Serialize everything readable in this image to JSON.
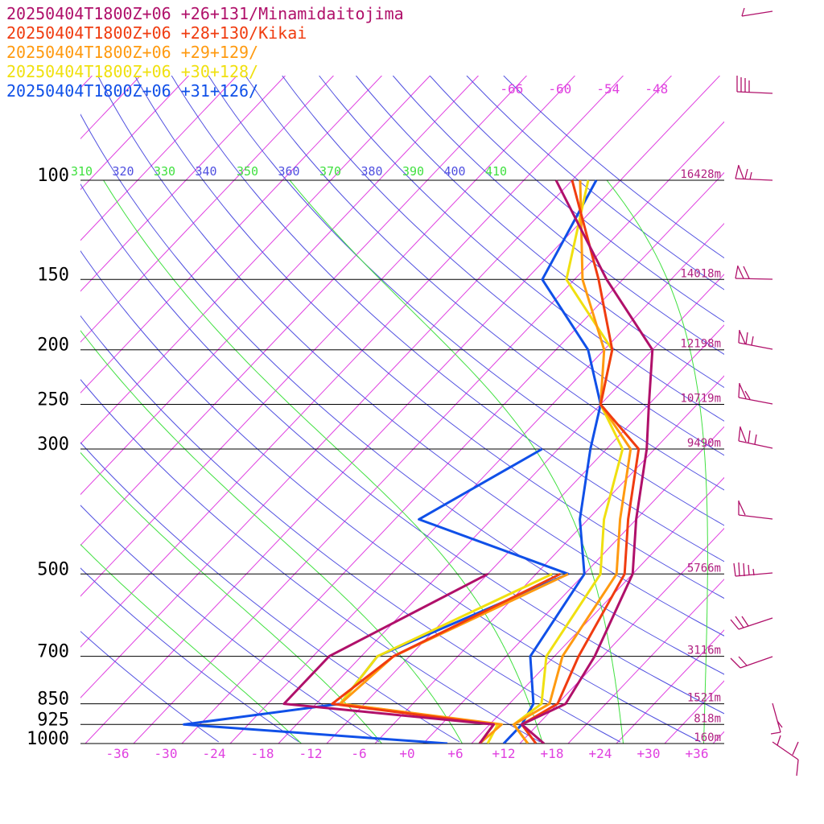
{
  "legend": [
    {
      "label": "20250404T1800Z+06 +26+131/Minamidaitojima",
      "color": "#b0106a"
    },
    {
      "label": "20250404T1800Z+06 +28+130/Kikai",
      "color": "#f03c10"
    },
    {
      "label": "20250404T1800Z+06 +29+129/",
      "color": "#ff9a10"
    },
    {
      "label": "20250404T1800Z+06 +30+128/",
      "color": "#f0e010"
    },
    {
      "label": "20250404T1800Z+06 +31+126/",
      "color": "#1050e8"
    }
  ],
  "colors": {
    "isotherm": "#e040e0",
    "dry_adiabat": "#5050e0",
    "moist_adiabat": "#40e040",
    "isobar": "#000000",
    "height_label": "#b02080",
    "wind_barb": "#b0106a"
  },
  "chart_data": {
    "type": "line",
    "diagram": "skew-T log-p",
    "pressure_levels": [
      100,
      150,
      200,
      250,
      300,
      500,
      700,
      850,
      925,
      1000
    ],
    "pressure_labels": [
      "100",
      "150",
      "200",
      "250",
      "300",
      "500",
      "700",
      "850",
      "925",
      "1000"
    ],
    "heights": [
      {
        "p": 100,
        "label": "16428m"
      },
      {
        "p": 150,
        "label": "14018m"
      },
      {
        "p": 200,
        "label": "12198m"
      },
      {
        "p": 250,
        "label": "10719m"
      },
      {
        "p": 300,
        "label": "9490m"
      },
      {
        "p": 500,
        "label": "5766m"
      },
      {
        "p": 700,
        "label": "3116m"
      },
      {
        "p": 850,
        "label": "1521m"
      },
      {
        "p": 925,
        "label": "818m"
      },
      {
        "p": 1000,
        "label": "160m"
      }
    ],
    "temp_ticks": [
      "-36",
      "-30",
      "-24",
      "-18",
      "-12",
      "-6",
      "+0",
      "+6",
      "+12",
      "+18",
      "+24",
      "+30",
      "+36"
    ],
    "upper_temp_ticks": [
      "-66",
      "-60",
      "-54",
      "-48"
    ],
    "theta_ticks": [
      {
        "label": "310",
        "kind": "moist"
      },
      {
        "label": "320",
        "kind": "dry"
      },
      {
        "label": "330",
        "kind": "moist"
      },
      {
        "label": "340",
        "kind": "dry"
      },
      {
        "label": "350",
        "kind": "moist"
      },
      {
        "label": "360",
        "kind": "dry"
      },
      {
        "label": "370",
        "kind": "moist"
      },
      {
        "label": "380",
        "kind": "dry"
      },
      {
        "label": "390",
        "kind": "moist"
      },
      {
        "label": "400",
        "kind": "dry"
      },
      {
        "label": "410",
        "kind": "moist"
      }
    ],
    "xlim": [
      -40,
      40
    ],
    "ylim": [
      1000,
      100
    ],
    "series": [
      {
        "name": "20250404T1800Z+06 +26+131/Minamidaitojima",
        "temperature": [
          [
            1000,
            17
          ],
          [
            925,
            12
          ],
          [
            850,
            15
          ],
          [
            700,
            13
          ],
          [
            500,
            8
          ],
          [
            400,
            2
          ],
          [
            300,
            -5
          ],
          [
            250,
            -10
          ],
          [
            200,
            -16
          ],
          [
            150,
            -30
          ],
          [
            100,
            -48
          ]
        ],
        "dewpoint": [
          [
            1000,
            9
          ],
          [
            925,
            8.5
          ],
          [
            850,
            -20
          ],
          [
            700,
            -20
          ],
          [
            500,
            -10
          ]
        ]
      },
      {
        "name": "20250404T1800Z+06 +28+130/Kikai",
        "temperature": [
          [
            1000,
            16
          ],
          [
            925,
            12
          ],
          [
            850,
            14
          ],
          [
            700,
            11
          ],
          [
            500,
            7
          ],
          [
            400,
            1
          ],
          [
            300,
            -6
          ],
          [
            250,
            -16
          ],
          [
            200,
            -21
          ],
          [
            150,
            -31
          ],
          [
            100,
            -46
          ]
        ],
        "dewpoint": [
          [
            1000,
            9
          ],
          [
            925,
            8.5
          ],
          [
            850,
            -14
          ],
          [
            700,
            -12
          ],
          [
            500,
            -1
          ]
        ]
      },
      {
        "name": "20250404T1800Z+06 +29+129/",
        "temperature": [
          [
            1000,
            15
          ],
          [
            925,
            11
          ],
          [
            850,
            13
          ],
          [
            700,
            9
          ],
          [
            500,
            6
          ],
          [
            400,
            0
          ],
          [
            300,
            -7
          ],
          [
            250,
            -16
          ],
          [
            200,
            -22
          ],
          [
            150,
            -33
          ],
          [
            100,
            -45
          ]
        ],
        "dewpoint": [
          [
            1000,
            9
          ],
          [
            925,
            9.5
          ],
          [
            850,
            -13
          ],
          [
            700,
            -12
          ],
          [
            500,
            0
          ]
        ]
      },
      {
        "name": "20250404T1800Z+06 +30+128/",
        "temperature": [
          [
            1000,
            15
          ],
          [
            925,
            11
          ],
          [
            850,
            12
          ],
          [
            700,
            7
          ],
          [
            500,
            4
          ],
          [
            400,
            -2
          ],
          [
            300,
            -8
          ],
          [
            250,
            -16
          ],
          [
            200,
            -21
          ],
          [
            150,
            -35
          ],
          [
            100,
            -44
          ]
        ],
        "dewpoint": [
          [
            1000,
            10
          ],
          [
            925,
            9
          ],
          [
            850,
            -13
          ],
          [
            700,
            -14
          ],
          [
            500,
            -2
          ]
        ]
      },
      {
        "name": "20250404T1800Z+06 +31+126/",
        "temperature": [
          [
            1000,
            12
          ],
          [
            925,
            12
          ],
          [
            850,
            11
          ],
          [
            700,
            5
          ],
          [
            500,
            2
          ],
          [
            400,
            -5
          ],
          [
            300,
            -12
          ],
          [
            250,
            -16
          ],
          [
            200,
            -24
          ],
          [
            150,
            -38
          ],
          [
            100,
            -43
          ]
        ],
        "dewpoint": [
          [
            1000,
            5
          ],
          [
            925,
            -30
          ],
          [
            850,
            -13
          ],
          [
            700,
            -14
          ],
          [
            500,
            0
          ],
          [
            400,
            -25
          ],
          [
            300,
            -18
          ]
        ]
      }
    ]
  }
}
